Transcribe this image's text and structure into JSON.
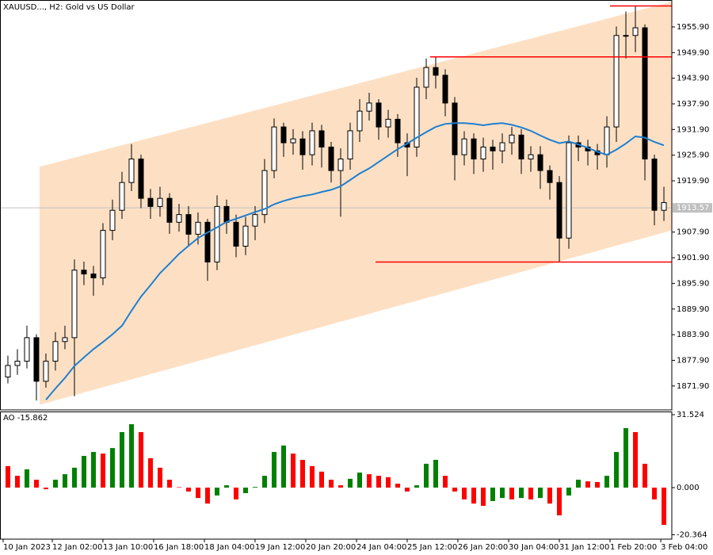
{
  "chart_data": [
    {
      "type": "candlestick",
      "title": "XAUUSD..., H2:  Gold vs US Dollar",
      "xlim": [
        -0.83,
        69.83
      ],
      "ylim": [
        1866.3,
        1962.2
      ],
      "yticks": [
        {
          "value": 1955.9,
          "label": "1955.90"
        },
        {
          "value": 1949.9,
          "label": "1949.90"
        },
        {
          "value": 1943.9,
          "label": "1943.90"
        },
        {
          "value": 1937.9,
          "label": "1937.90"
        },
        {
          "value": 1931.9,
          "label": "1931.90"
        },
        {
          "value": 1925.9,
          "label": "1925.90"
        },
        {
          "value": 1919.9,
          "label": "1919.90"
        },
        {
          "value": 1907.9,
          "label": "1907.90"
        },
        {
          "value": 1901.9,
          "label": "1901.90"
        },
        {
          "value": 1895.9,
          "label": "1895.90"
        },
        {
          "value": 1889.9,
          "label": "1889.90"
        },
        {
          "value": 1883.9,
          "label": "1883.90"
        },
        {
          "value": 1877.9,
          "label": "1877.90"
        },
        {
          "value": 1871.9,
          "label": "1871.90"
        }
      ],
      "current_price": 1913.57,
      "current_price_color": "#c0c0c0",
      "candle_color": "#000000",
      "open": [
        1874.0,
        1876.7,
        1877.7,
        1883.2,
        1873.0,
        1877.7,
        1882.3,
        1883.2,
        1899.0,
        1898.1,
        1897.2,
        1908.3,
        1913.0,
        1919.5,
        1925.0,
        1915.8,
        1913.9,
        1915.8,
        1910.2,
        1912.0,
        1907.4,
        1910.2,
        1900.9,
        1913.9,
        1910.2,
        1904.6,
        1909.3,
        1912.0,
        1922.3,
        1932.5,
        1928.8,
        1929.7,
        1926.0,
        1931.6,
        1927.8,
        1922.3,
        1925.0,
        1931.6,
        1936.2,
        1938.1,
        1932.5,
        1934.3,
        1928.8,
        1927.8,
        1941.8,
        1946.4,
        1944.6,
        1938.1,
        1926.0,
        1929.7,
        1925.0,
        1927.8,
        1926.9,
        1928.8,
        1930.6,
        1925.0,
        1926.0,
        1922.3,
        1919.5,
        1906.5,
        1928.8,
        1927.8,
        1926.9,
        1926.0,
        1932.5,
        1953.9,
        1953.9,
        1955.7,
        1925.0,
        1913.0
      ],
      "high": [
        1879.0,
        1880.5,
        1886.0,
        1884.0,
        1879.5,
        1884.5,
        1886.0,
        1901.5,
        1901.0,
        1900.0,
        1910.0,
        1915.5,
        1922.0,
        1928.5,
        1926.0,
        1918.0,
        1918.5,
        1917.0,
        1914.5,
        1914.0,
        1912.5,
        1911.0,
        1916.5,
        1915.5,
        1912.0,
        1911.5,
        1914.0,
        1925.0,
        1934.5,
        1933.5,
        1932.0,
        1931.5,
        1933.5,
        1933.0,
        1929.0,
        1927.5,
        1933.5,
        1939.0,
        1940.5,
        1939.0,
        1936.5,
        1935.5,
        1931.0,
        1944.0,
        1948.5,
        1948.9,
        1946.0,
        1939.5,
        1931.5,
        1931.0,
        1930.0,
        1929.5,
        1931.0,
        1932.5,
        1932.0,
        1928.0,
        1928.0,
        1923.5,
        1921.0,
        1930.5,
        1930.5,
        1929.5,
        1928.5,
        1935.0,
        1956.0,
        1959.5,
        1960.8,
        1956.5,
        1926.0,
        1918.5
      ],
      "low": [
        1872.5,
        1874.5,
        1876.0,
        1868.5,
        1871.5,
        1875.5,
        1880.5,
        1869.5,
        1895.5,
        1893.0,
        1895.5,
        1906.0,
        1911.0,
        1917.5,
        1913.5,
        1911.0,
        1911.5,
        1907.5,
        1908.0,
        1904.5,
        1905.0,
        1896.5,
        1899.0,
        1907.5,
        1902.0,
        1902.5,
        1906.0,
        1910.0,
        1920.5,
        1925.5,
        1926.0,
        1922.5,
        1923.5,
        1923.0,
        1919.5,
        1911.5,
        1922.5,
        1929.0,
        1934.0,
        1929.5,
        1930.0,
        1925.5,
        1921.0,
        1925.5,
        1939.0,
        1941.5,
        1935.0,
        1920.0,
        1923.5,
        1921.5,
        1922.0,
        1922.5,
        1924.0,
        1926.0,
        1921.5,
        1922.0,
        1918.0,
        1915.5,
        1900.9,
        1904.0,
        1924.5,
        1923.5,
        1922.5,
        1923.0,
        1929.0,
        1948.5,
        1950.0,
        1920.0,
        1909.5,
        1910.5
      ],
      "close": [
        1876.7,
        1877.7,
        1883.2,
        1873.0,
        1877.7,
        1882.3,
        1883.2,
        1899.0,
        1898.1,
        1897.2,
        1908.3,
        1913.0,
        1919.5,
        1925.0,
        1915.8,
        1913.9,
        1915.8,
        1910.2,
        1912.0,
        1907.4,
        1910.2,
        1900.9,
        1913.9,
        1910.2,
        1904.6,
        1909.3,
        1912.0,
        1922.3,
        1932.5,
        1928.8,
        1929.7,
        1926.0,
        1931.6,
        1927.8,
        1922.3,
        1925.0,
        1931.6,
        1936.2,
        1938.1,
        1932.5,
        1934.3,
        1928.8,
        1927.8,
        1941.8,
        1946.4,
        1944.6,
        1938.1,
        1926.0,
        1929.7,
        1925.0,
        1927.8,
        1926.9,
        1928.8,
        1930.6,
        1925.0,
        1926.0,
        1922.3,
        1919.5,
        1906.5,
        1928.8,
        1927.8,
        1926.9,
        1926.0,
        1932.5,
        1953.9,
        1953.9,
        1955.7,
        1925.0,
        1913.0,
        1914.8
      ],
      "ma": {
        "color": "#1e7fd0",
        "values": [
          null,
          null,
          null,
          null,
          1868.7,
          1871.3,
          1873.8,
          1876.6,
          1878.6,
          1880.5,
          1882.2,
          1884.0,
          1886.0,
          1889.5,
          1892.8,
          1895.5,
          1898.3,
          1900.5,
          1902.8,
          1904.7,
          1906.5,
          1907.8,
          1909.0,
          1910.3,
          1911.0,
          1911.8,
          1912.6,
          1913.3,
          1914.4,
          1915.2,
          1915.8,
          1916.3,
          1916.7,
          1917.3,
          1917.8,
          1918.6,
          1920.1,
          1921.6,
          1922.8,
          1924.3,
          1925.8,
          1927.3,
          1928.6,
          1930.0,
          1931.3,
          1932.5,
          1933.2,
          1933.4,
          1933.4,
          1933.2,
          1932.9,
          1933.2,
          1933.4,
          1933.0,
          1932.4,
          1931.6,
          1930.5,
          1929.5,
          1928.7,
          1929.1,
          1928.4,
          1927.6,
          1926.7,
          1926.0,
          1927.2,
          1928.6,
          1930.3,
          1930.0,
          1929.0,
          1928.2
        ]
      },
      "channel": {
        "color": "#fde0c4",
        "x": [
          3.33,
          69.83
        ],
        "upper": [
          1923.2,
          1961.8
        ],
        "lower": [
          1867.5,
          1908.3
        ]
      },
      "levels": {
        "color": "#ff0000",
        "values": [
          1960.8,
          1948.9,
          1900.9
        ],
        "start": [
          63.33,
          44.4,
          38.67
        ]
      }
    },
    {
      "type": "bar",
      "title": "AO -15.862",
      "xlim": [
        -0.83,
        69.83
      ],
      "ylim": [
        -22.28,
        32.9
      ],
      "yticks": [
        31.524,
        {
          "value": 0,
          "label": "0.000"
        },
        -20.364
      ],
      "up_color": "#008000",
      "down_color": "#ff0000",
      "values": [
        9.3,
        5.1,
        7.9,
        3.4,
        -0.7,
        3.4,
        5.8,
        8.6,
        13.7,
        15.4,
        14.7,
        17.1,
        24.0,
        27.4,
        24.0,
        12.7,
        8.6,
        3.4,
        0.2,
        -1.7,
        -4.5,
        -6.9,
        -3.4,
        1.0,
        -5.1,
        -2.4,
        0.3,
        5.1,
        15.4,
        18.2,
        14.7,
        12.0,
        9.3,
        6.9,
        3.4,
        1.0,
        3.8,
        6.5,
        5.8,
        5.1,
        4.5,
        1.7,
        -1.7,
        1.0,
        10.3,
        12.0,
        5.1,
        -1.7,
        -5.1,
        -6.9,
        -7.9,
        -5.8,
        -4.5,
        -5.1,
        -4.5,
        -5.1,
        -4.5,
        -6.9,
        -12.0,
        -3.4,
        3.4,
        2.7,
        2.4,
        5.1,
        15.4,
        25.7,
        24.0,
        10.3,
        -5.1,
        -16.1
      ],
      "xticks": [
        {
          "value": -0.5,
          "label": "10 Jan 2023"
        },
        {
          "value": 4.67,
          "label": "12 Jan 02:00"
        },
        {
          "value": 10,
          "label": "13 Jan 10:00"
        },
        {
          "value": 15.33,
          "label": "16 Jan 18:00"
        },
        {
          "value": 20.67,
          "label": "18 Jan 04:00"
        },
        {
          "value": 26,
          "label": "19 Jan 12:00"
        },
        {
          "value": 31.33,
          "label": "20 Jan 20:00"
        },
        {
          "value": 36.67,
          "label": "24 Jan 04:00"
        },
        {
          "value": 42,
          "label": "25 Jan 12:00"
        },
        {
          "value": 47.33,
          "label": "26 Jan 20:00"
        },
        {
          "value": 52.67,
          "label": "30 Jan 04:00"
        },
        {
          "value": 58,
          "label": "31 Jan 12:00"
        },
        {
          "value": 63.33,
          "label": "1 Feb 20:00"
        },
        {
          "value": 68.67,
          "label": "3 Feb 04:00"
        }
      ]
    }
  ]
}
